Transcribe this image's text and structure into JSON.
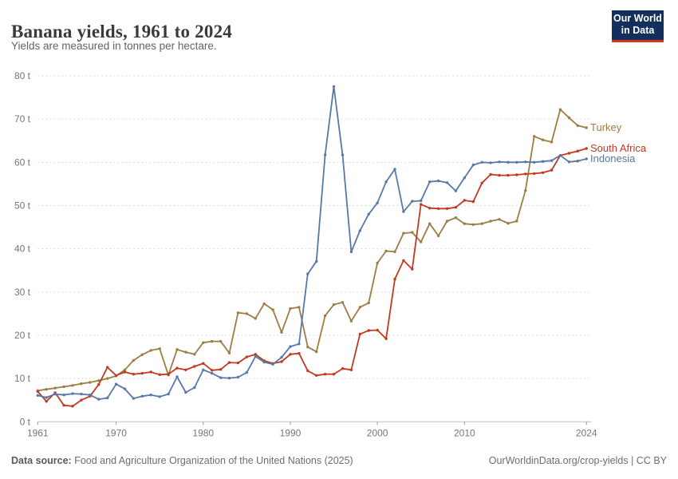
{
  "header": {
    "title": "Banana yields, 1961 to 2024",
    "subtitle": "Yields are measured in tonnes per hectare."
  },
  "logo": {
    "line1": "Our World",
    "line2": "in Data",
    "bg_color": "#12305b",
    "accent_color": "#dc3327"
  },
  "chart_data": {
    "type": "line",
    "title": "Banana yields, 1961 to 2024",
    "unit_suffix": " t",
    "grid": "horizontal-dashed",
    "legend_position": "right-of-line-ends",
    "xlim": [
      1961,
      2024
    ],
    "ylim": [
      0,
      80
    ],
    "x_ticks": [
      1961,
      1970,
      1980,
      1990,
      2000,
      2010,
      2024
    ],
    "y_ticks": [
      0,
      10,
      20,
      30,
      40,
      50,
      60,
      70,
      80
    ],
    "x": [
      1961,
      1962,
      1963,
      1964,
      1965,
      1966,
      1967,
      1968,
      1969,
      1970,
      1971,
      1972,
      1973,
      1974,
      1975,
      1976,
      1977,
      1978,
      1979,
      1980,
      1981,
      1982,
      1983,
      1984,
      1985,
      1986,
      1987,
      1988,
      1989,
      1990,
      1991,
      1992,
      1993,
      1994,
      1995,
      1996,
      1997,
      1998,
      1999,
      2000,
      2001,
      2002,
      2003,
      2004,
      2005,
      2006,
      2007,
      2008,
      2009,
      2010,
      2011,
      2012,
      2013,
      2014,
      2015,
      2016,
      2017,
      2018,
      2019,
      2020,
      2021,
      2022,
      2023,
      2024
    ],
    "series": [
      {
        "name": "Turkey",
        "color": "#9d7d42",
        "values": [
          7.2,
          7.5,
          7.8,
          8.1,
          8.4,
          8.8,
          9.1,
          9.5,
          10.0,
          10.6,
          12.0,
          14.2,
          15.5,
          16.5,
          16.9,
          10.8,
          16.7,
          16.1,
          15.6,
          18.3,
          18.6,
          18.6,
          15.9,
          25.2,
          25.0,
          23.9,
          27.3,
          25.9,
          20.7,
          26.2,
          26.5,
          17.3,
          16.2,
          24.5,
          27.1,
          27.6,
          23.3,
          26.5,
          27.5,
          36.7,
          39.5,
          39.3,
          43.6,
          43.8,
          41.6,
          45.8,
          43.0,
          46.4,
          47.2,
          45.8,
          45.6,
          45.8,
          46.4,
          46.8,
          45.9,
          46.4,
          53.5,
          66.0,
          65.2,
          64.7,
          72.2,
          70.3,
          68.5,
          68.0
        ]
      },
      {
        "name": "South Africa",
        "color": "#c03a21",
        "values": [
          7.0,
          4.7,
          6.7,
          3.8,
          3.6,
          5.0,
          5.9,
          8.6,
          12.6,
          10.7,
          11.5,
          11.0,
          11.2,
          11.5,
          10.9,
          11.0,
          12.4,
          12.0,
          12.8,
          13.5,
          11.9,
          12.1,
          13.7,
          13.6,
          15.0,
          15.6,
          14.1,
          13.5,
          13.9,
          15.6,
          15.8,
          11.8,
          10.7,
          11.0,
          11.0,
          12.3,
          12.0,
          20.3,
          21.1,
          21.2,
          19.2,
          33.0,
          37.3,
          35.3,
          50.3,
          49.4,
          49.3,
          49.3,
          49.6,
          51.2,
          50.9,
          55.2,
          57.2,
          57.0,
          57.0,
          57.1,
          57.3,
          57.4,
          57.6,
          58.2,
          61.6,
          62.1,
          62.6,
          63.2
        ]
      },
      {
        "name": "Indonesia",
        "color": "#5878a8",
        "values": [
          6.1,
          5.6,
          6.4,
          6.2,
          6.5,
          6.4,
          6.2,
          5.2,
          5.5,
          8.7,
          7.6,
          5.4,
          5.9,
          6.2,
          5.8,
          6.4,
          10.4,
          6.8,
          7.9,
          12.0,
          11.2,
          10.2,
          10.1,
          10.3,
          11.4,
          15.1,
          13.8,
          13.3,
          14.9,
          17.4,
          18.0,
          34.2,
          37.1,
          61.7,
          77.5,
          61.7,
          39.3,
          44.2,
          48.0,
          50.6,
          55.5,
          58.4,
          48.6,
          51.0,
          51.1,
          55.5,
          55.7,
          55.3,
          53.4,
          56.4,
          59.4,
          60.0,
          59.9,
          60.1,
          60.0,
          60.0,
          60.1,
          60.0,
          60.2,
          60.4,
          61.6,
          60.1,
          60.3,
          60.8
        ]
      }
    ]
  },
  "footer": {
    "source_label": "Data source:",
    "source_text": " Food and Agriculture Organization of the United Nations (2025)",
    "credit": "OurWorldinData.org/crop-yields | CC BY"
  }
}
